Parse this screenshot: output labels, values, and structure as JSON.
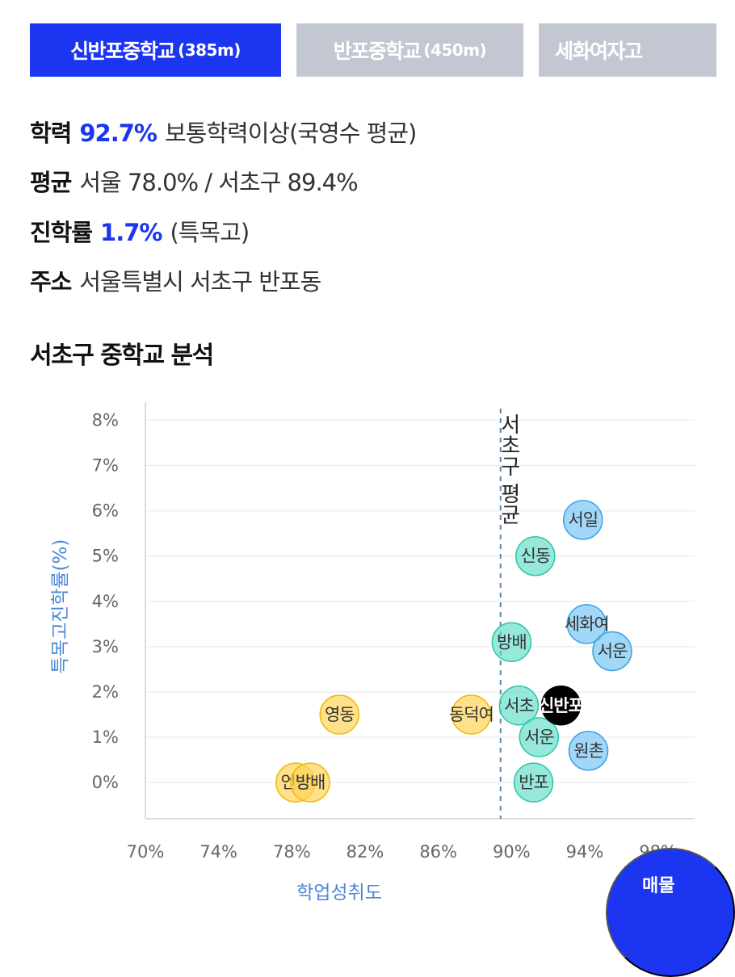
{
  "tabs": [
    {
      "name": "신반포중학교",
      "dist": "(385m)",
      "active": true
    },
    {
      "name": "반포중학교",
      "dist": "(450m)",
      "active": false
    },
    {
      "name": "세화여자고",
      "dist": "",
      "active": false
    }
  ],
  "info": {
    "academic": {
      "label": "학력",
      "value": "92.7%",
      "desc": "보통학력이상(국영수 평균)"
    },
    "average": {
      "label": "평균",
      "desc": "서울 78.0% / 서초구 89.4%"
    },
    "advance": {
      "label": "진학률",
      "value": "1.7%",
      "desc": "(특목고)"
    },
    "address": {
      "label": "주소",
      "desc": "서울특별시 서초구 반포동"
    }
  },
  "section_title": "서초구 중학교 분석",
  "chart_data": {
    "type": "scatter",
    "title": "",
    "xlabel": "학업성취도",
    "ylabel": "특목고진학률(%)",
    "xlim": [
      70,
      100
    ],
    "ylim": [
      -0.8,
      8.4
    ],
    "x_ticks": [
      70,
      74,
      78,
      82,
      86,
      90,
      94,
      98
    ],
    "x_tick_labels": [
      "70%",
      "74%",
      "78%",
      "82%",
      "86%",
      "90%",
      "94%",
      "98%"
    ],
    "y_ticks": [
      0,
      1,
      2,
      3,
      4,
      5,
      6,
      7,
      8
    ],
    "y_tick_labels": [
      "0%",
      "1%",
      "2%",
      "3%",
      "4%",
      "5%",
      "6%",
      "7%",
      "8%"
    ],
    "grid": true,
    "reference_line": {
      "x": 89.4,
      "label": "서초구 평균"
    },
    "colors": {
      "yellow": "#ffd35a",
      "teal": "#5edcc8",
      "blue": "#6ec2f2",
      "selected": "#000000"
    },
    "points": [
      {
        "label": "언남",
        "x": 78.2,
        "y": 0.0,
        "group": "yellow"
      },
      {
        "label": "방배",
        "x": 79.0,
        "y": 0.0,
        "group": "yellow"
      },
      {
        "label": "영동",
        "x": 80.6,
        "y": 1.5,
        "group": "yellow"
      },
      {
        "label": "동덕여",
        "x": 87.8,
        "y": 1.5,
        "group": "yellow"
      },
      {
        "label": "방배",
        "x": 90.0,
        "y": 3.1,
        "group": "teal"
      },
      {
        "label": "신동",
        "x": 91.3,
        "y": 5.0,
        "group": "teal"
      },
      {
        "label": "서초",
        "x": 90.4,
        "y": 1.7,
        "group": "teal"
      },
      {
        "label": "서운",
        "x": 91.5,
        "y": 1.0,
        "group": "teal"
      },
      {
        "label": "반포",
        "x": 91.2,
        "y": 0.0,
        "group": "teal"
      },
      {
        "label": "서일",
        "x": 93.9,
        "y": 5.8,
        "group": "blue"
      },
      {
        "label": "세화여",
        "x": 94.1,
        "y": 3.5,
        "group": "blue"
      },
      {
        "label": "서운",
        "x": 95.5,
        "y": 2.9,
        "group": "blue"
      },
      {
        "label": "원촌",
        "x": 94.2,
        "y": 0.7,
        "group": "blue"
      },
      {
        "label": "신반포",
        "x": 92.7,
        "y": 1.7,
        "group": "selected"
      }
    ]
  },
  "fab": {
    "label": "매물"
  }
}
